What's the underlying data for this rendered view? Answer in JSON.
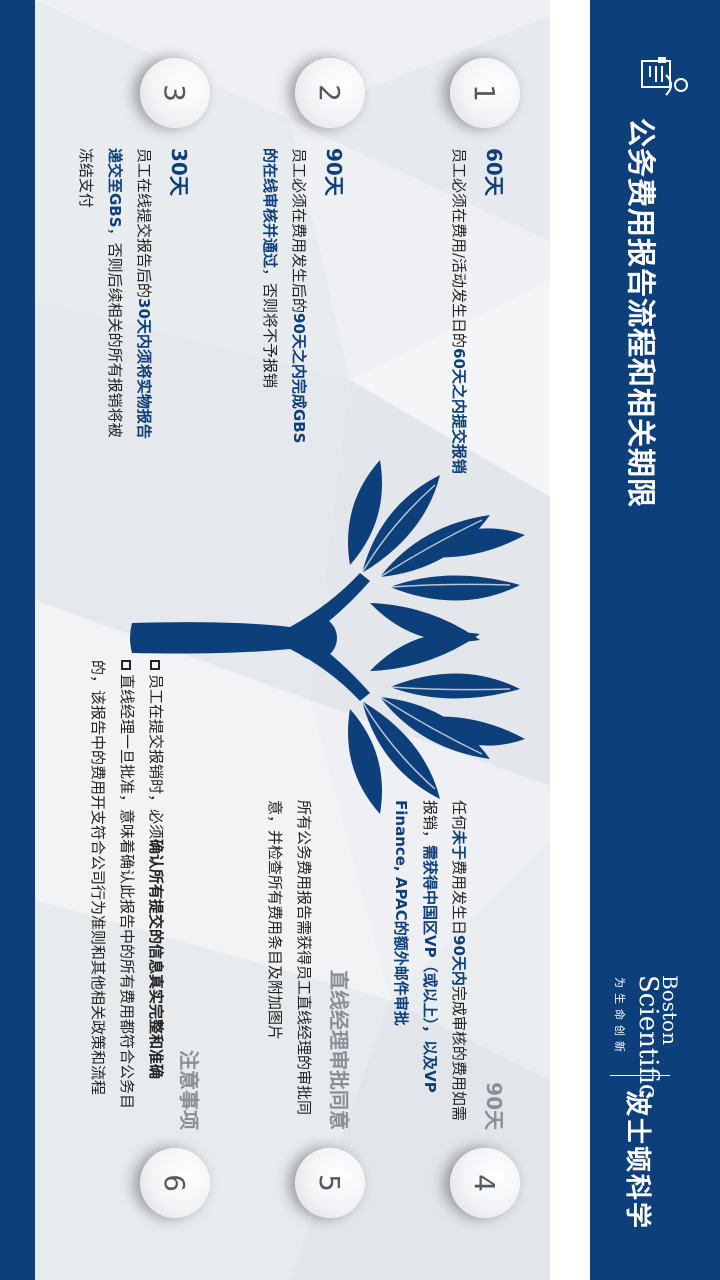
{
  "title": "公务费用报告流程和相关期限",
  "brand": {
    "name_en_line1": "Boston",
    "name_en_line2": "Scientific",
    "tagline": "为生命创新",
    "name_cn": "波士顿科学"
  },
  "steps": [
    {
      "number": "1",
      "title": "60天",
      "text_pre": "员工必须在费用/活动发生日的",
      "text_bold": "60天之内提交报销",
      "text_post": ""
    },
    {
      "number": "2",
      "title": "90天",
      "text_pre": "员工必须在费用发生后的",
      "text_bold": "90天之内完成GBS的在线审核并通过",
      "text_post": "，否则将不予报销"
    },
    {
      "number": "3",
      "title": "30天",
      "text_pre": "员工在线提交报告后的",
      "text_bold": "30天内须将实物报告递交至GBS",
      "text_post": "，否则后续相关的所有报销将被冻结支付"
    },
    {
      "number": "4",
      "title": "90天",
      "text_pre": "任何",
      "text_bold1": "未于",
      "text_mid1": "费用发生日",
      "text_bold2": "90天内",
      "text_mid2": "完成审核的费用如需报销，",
      "text_bold3": "需获得中国区VP（或以上），以及VP Finance, APAC的额外邮件审批",
      "text_post": ""
    },
    {
      "number": "5",
      "title": "直线经理审批同意",
      "text": "所有公务费用报告需获得员工直线经理的审批同意，并检查所有费用条目及附加图片"
    },
    {
      "number": "6",
      "title": "注意事项",
      "bullets": [
        {
          "pre": "员工在提交报销时，必须",
          "bold": "确认所有提交的信息真实完整和准确",
          "post": ""
        },
        {
          "pre": "直线经理一旦批准，意味着确认此报告中的所有费用都符合公务目的，该报告中的费用开支符合公司行为准则和其他相关政策和流程",
          "bold": "",
          "post": ""
        }
      ]
    }
  ],
  "colors": {
    "brand_blue": "#0d3f7a",
    "panel_bg": "#eef0f3",
    "title_grey": "#8a8f96"
  },
  "icons": {
    "title_icon": "employee-report-icon",
    "tree": "tree-graphic"
  }
}
